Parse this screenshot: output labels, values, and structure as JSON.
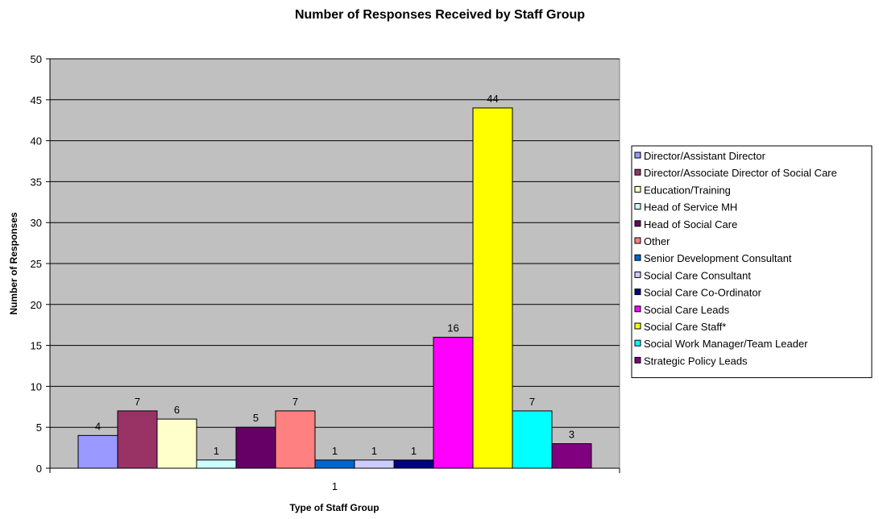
{
  "chart_data": {
    "type": "bar",
    "title": "Number of Responses Received by Staff Group",
    "xlabel": "Type of Staff Group",
    "ylabel": "Number of Responses",
    "categories": [
      "1"
    ],
    "ylim": [
      0,
      50
    ],
    "y_ticks": [
      0,
      5,
      10,
      15,
      20,
      25,
      30,
      35,
      40,
      45,
      50
    ],
    "grid": true,
    "plot_background": "#C0C0C0",
    "legend_position": "right",
    "series": [
      {
        "name": "Director/Assistant Director",
        "values": [
          4
        ],
        "color": "#9999FF"
      },
      {
        "name": "Director/Associate Director of Social Care",
        "values": [
          7
        ],
        "color": "#993366"
      },
      {
        "name": "Education/Training",
        "values": [
          6
        ],
        "color": "#FFFFCC"
      },
      {
        "name": "Head of Service MH",
        "values": [
          1
        ],
        "color": "#CCFFFF"
      },
      {
        "name": "Head of Social Care",
        "values": [
          5
        ],
        "color": "#660066"
      },
      {
        "name": "Other",
        "values": [
          7
        ],
        "color": "#FF8080"
      },
      {
        "name": "Senior Development Consultant",
        "values": [
          1
        ],
        "color": "#0066CC"
      },
      {
        "name": "Social Care Consultant",
        "values": [
          1
        ],
        "color": "#CCCCFF"
      },
      {
        "name": "Social Care Co-Ordinator",
        "values": [
          1
        ],
        "color": "#000080"
      },
      {
        "name": "Social Care Leads",
        "values": [
          16
        ],
        "color": "#FF00FF"
      },
      {
        "name": "Social Care Staff*",
        "values": [
          44
        ],
        "color": "#FFFF00"
      },
      {
        "name": "Social Work Manager/Team Leader",
        "values": [
          7
        ],
        "color": "#00FFFF"
      },
      {
        "name": "Strategic Policy Leads",
        "values": [
          3
        ],
        "color": "#800080"
      }
    ]
  }
}
